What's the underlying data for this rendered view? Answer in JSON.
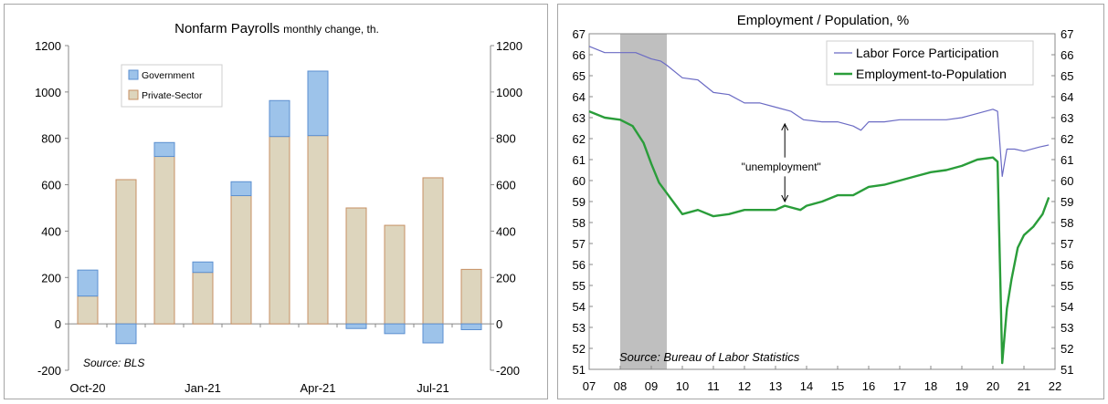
{
  "chart_data": [
    {
      "type": "bar",
      "stacked": true,
      "title": "Nonfarm Payrolls",
      "subtitle": "monthly change, th.",
      "categories": [
        "Oct-20",
        "Nov-20",
        "Dec-20",
        "Jan-21",
        "Feb-21",
        "Mar-21",
        "Apr-21",
        "May-21",
        "Jun-21",
        "Jul-21",
        "Aug-21"
      ],
      "x_tick_labels": [
        "Oct-20",
        "Jan-21",
        "Apr-21",
        "Jul-21"
      ],
      "series": [
        {
          "name": "Private-Sector",
          "color": "#ddd5bd",
          "values": [
            120,
            622,
            722,
            222,
            553,
            808,
            812,
            500,
            425,
            630,
            235
          ]
        },
        {
          "name": "Government",
          "color": "#9dc3ea",
          "values": [
            112,
            -85,
            60,
            45,
            60,
            155,
            278,
            -20,
            -42,
            -82,
            -25
          ]
        }
      ],
      "ylim": [
        -200,
        1200
      ],
      "yticks": [
        "-200",
        "0",
        "200",
        "400",
        "600",
        "800",
        "1000",
        "1200"
      ],
      "legend_position": "top-left",
      "source": "Source: BLS"
    },
    {
      "type": "line",
      "title": "Employment / Population, %",
      "x_tick_labels": [
        "07",
        "08",
        "09",
        "10",
        "11",
        "12",
        "13",
        "14",
        "15",
        "16",
        "17",
        "18",
        "19",
        "20",
        "21",
        "22"
      ],
      "xlim": [
        2007,
        2022
      ],
      "ylim": [
        51,
        67
      ],
      "yticks": [
        "51",
        "52",
        "53",
        "54",
        "55",
        "56",
        "57",
        "58",
        "59",
        "60",
        "61",
        "62",
        "63",
        "64",
        "65",
        "66",
        "67"
      ],
      "recession": {
        "start": 2008.0,
        "end": 2009.5
      },
      "series": [
        {
          "name": "Labor Force Participation",
          "color": "#6b6bc4",
          "points": [
            [
              2007.0,
              66.4
            ],
            [
              2007.5,
              66.1
            ],
            [
              2008.0,
              66.1
            ],
            [
              2008.5,
              66.1
            ],
            [
              2009.0,
              65.8
            ],
            [
              2009.3,
              65.7
            ],
            [
              2009.5,
              65.5
            ],
            [
              2010.0,
              64.9
            ],
            [
              2010.5,
              64.8
            ],
            [
              2011.0,
              64.2
            ],
            [
              2011.5,
              64.1
            ],
            [
              2012.0,
              63.7
            ],
            [
              2012.5,
              63.7
            ],
            [
              2013.0,
              63.5
            ],
            [
              2013.5,
              63.3
            ],
            [
              2013.9,
              62.9
            ],
            [
              2014.5,
              62.8
            ],
            [
              2015.0,
              62.8
            ],
            [
              2015.5,
              62.6
            ],
            [
              2015.75,
              62.4
            ],
            [
              2016.0,
              62.8
            ],
            [
              2016.5,
              62.8
            ],
            [
              2017.0,
              62.9
            ],
            [
              2017.5,
              62.9
            ],
            [
              2018.0,
              62.9
            ],
            [
              2018.5,
              62.9
            ],
            [
              2019.0,
              63.0
            ],
            [
              2019.5,
              63.2
            ],
            [
              2020.0,
              63.4
            ],
            [
              2020.15,
              63.3
            ],
            [
              2020.3,
              60.2
            ],
            [
              2020.45,
              61.5
            ],
            [
              2020.7,
              61.5
            ],
            [
              2021.0,
              61.4
            ],
            [
              2021.5,
              61.6
            ],
            [
              2021.8,
              61.7
            ]
          ]
        },
        {
          "name": "Employment-to-Population",
          "color": "#2a9d3a",
          "points": [
            [
              2007.0,
              63.3
            ],
            [
              2007.5,
              63.0
            ],
            [
              2008.0,
              62.9
            ],
            [
              2008.4,
              62.6
            ],
            [
              2008.75,
              61.8
            ],
            [
              2009.0,
              60.8
            ],
            [
              2009.25,
              59.9
            ],
            [
              2009.5,
              59.4
            ],
            [
              2009.8,
              58.8
            ],
            [
              2010.0,
              58.4
            ],
            [
              2010.5,
              58.6
            ],
            [
              2011.0,
              58.3
            ],
            [
              2011.5,
              58.4
            ],
            [
              2012.0,
              58.6
            ],
            [
              2012.5,
              58.6
            ],
            [
              2013.0,
              58.6
            ],
            [
              2013.3,
              58.8
            ],
            [
              2013.8,
              58.6
            ],
            [
              2014.0,
              58.8
            ],
            [
              2014.5,
              59.0
            ],
            [
              2015.0,
              59.3
            ],
            [
              2015.5,
              59.3
            ],
            [
              2016.0,
              59.7
            ],
            [
              2016.5,
              59.8
            ],
            [
              2017.0,
              60.0
            ],
            [
              2017.5,
              60.2
            ],
            [
              2018.0,
              60.4
            ],
            [
              2018.5,
              60.5
            ],
            [
              2019.0,
              60.7
            ],
            [
              2019.5,
              61.0
            ],
            [
              2020.0,
              61.1
            ],
            [
              2020.15,
              60.9
            ],
            [
              2020.3,
              51.3
            ],
            [
              2020.45,
              53.9
            ],
            [
              2020.6,
              55.3
            ],
            [
              2020.8,
              56.8
            ],
            [
              2021.0,
              57.4
            ],
            [
              2021.3,
              57.8
            ],
            [
              2021.6,
              58.4
            ],
            [
              2021.8,
              59.2
            ]
          ]
        }
      ],
      "annotations": [
        {
          "text": "\"unemployment\"",
          "x": 2013.3
        }
      ],
      "legend_position": "top-right",
      "source": "Source: Bureau of Labor Statistics"
    }
  ]
}
